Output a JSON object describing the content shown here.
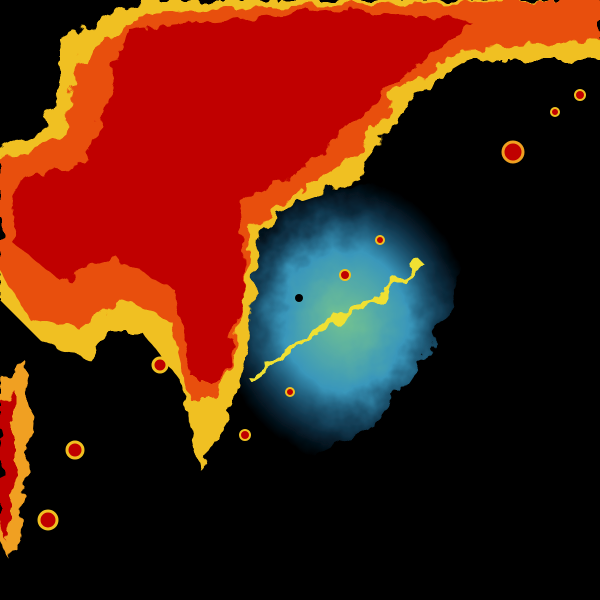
{
  "image": {
    "background": "#000000",
    "palette": {
      "heavy": "#c00000",
      "strong": "#e03000",
      "moderate": "#f07010",
      "light": "#f0d020",
      "weak": "#d0f070",
      "faint": "#60c8d0",
      "trace": "#2080c0"
    }
  }
}
